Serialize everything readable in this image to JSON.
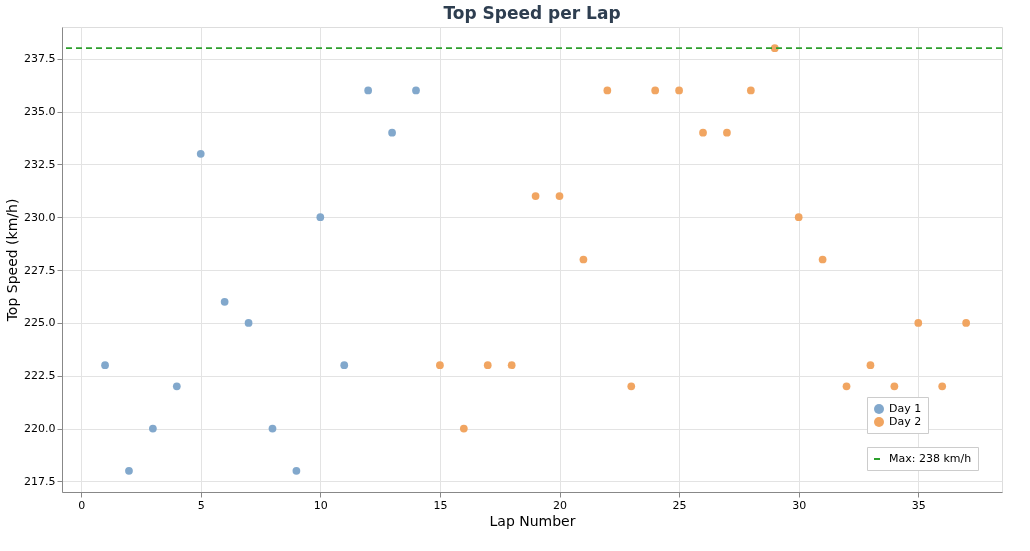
{
  "chart_data": {
    "type": "scatter",
    "title": "Top Speed per Lap",
    "xlabel": "Lap Number",
    "ylabel": "Top Speed (km/h)",
    "series": [
      {
        "name": "Day 1",
        "color": "#7ba3c9",
        "x": [
          1,
          2,
          3,
          4,
          5,
          6,
          7,
          8,
          9,
          10,
          11,
          12,
          13,
          14
        ],
        "values": [
          223,
          218,
          220,
          222,
          233,
          226,
          225,
          220,
          218,
          230,
          223,
          236,
          234,
          236
        ]
      },
      {
        "name": "Day 2",
        "color": "#f0a058",
        "x": [
          15,
          16,
          17,
          18,
          19,
          20,
          21,
          22,
          23,
          24,
          25,
          26,
          27,
          28,
          29,
          30,
          31,
          32,
          33,
          34,
          35,
          36,
          37
        ],
        "values": [
          223,
          220,
          223,
          223,
          231,
          231,
          228,
          236,
          222,
          236,
          236,
          234,
          234,
          236,
          238,
          230,
          228,
          222,
          223,
          222,
          225,
          222,
          225
        ]
      }
    ],
    "ref_lines": [
      {
        "axis": "y",
        "value": 238,
        "label": "Max: 238 km/h",
        "color": "#2ca02c",
        "line_style": "dashed"
      }
    ],
    "xlim": [
      -0.8,
      38.5
    ],
    "xticks": [
      0,
      5,
      10,
      15,
      20,
      25,
      30,
      35
    ],
    "ylim": [
      217,
      239
    ],
    "yticks": [
      {
        "value": 217.5,
        "label": "217.5"
      },
      {
        "value": 220,
        "label": "220.0"
      },
      {
        "value": 222.5,
        "label": "222.5"
      },
      {
        "value": 225,
        "label": "225.0"
      },
      {
        "value": 227.5,
        "label": "227.5"
      },
      {
        "value": 230,
        "label": "230.0"
      },
      {
        "value": 232.5,
        "label": "232.5"
      },
      {
        "value": 235,
        "label": "235.0"
      },
      {
        "value": 237.5,
        "label": "237.5"
      }
    ],
    "grid": true,
    "legend": "bottom right",
    "marker": "circle"
  }
}
